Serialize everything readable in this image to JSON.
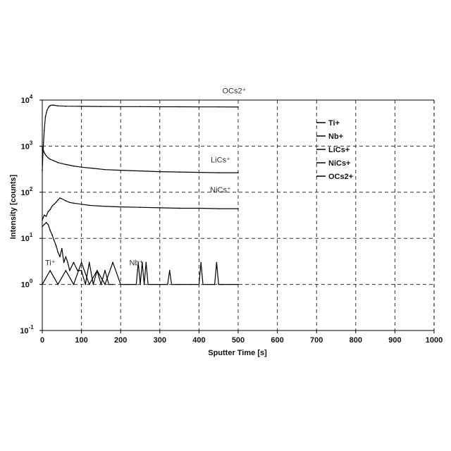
{
  "chart_data": {
    "type": "line",
    "xlabel": "Sputter Time [s]",
    "ylabel": "Intensity [counts]",
    "xlim": [
      0,
      1000
    ],
    "ylim": [
      0.1,
      10000
    ],
    "yscale": "log",
    "grid": true,
    "grid_style": "dashed",
    "legend_position": "right",
    "x_ticks": [
      "0",
      "100",
      "200",
      "300",
      "400",
      "500",
      "600",
      "700",
      "800",
      "900",
      "1000"
    ],
    "y_ticks": [
      {
        "base": "10",
        "exp": "-1"
      },
      {
        "base": "10",
        "exp": "0"
      },
      {
        "base": "10",
        "exp": "1"
      },
      {
        "base": "10",
        "exp": "2"
      },
      {
        "base": "10",
        "exp": "3"
      },
      {
        "base": "10",
        "exp": "4"
      }
    ],
    "legend": [
      "Ti+",
      "Nb+",
      "LiCs+",
      "NiCs+",
      "OCs2+"
    ],
    "annotations": [
      {
        "text": "OCs2⁺",
        "x": 490,
        "y": 14000
      },
      {
        "text": "LiCs⁺",
        "x": 455,
        "y": 440
      },
      {
        "text": "NiCs⁺",
        "x": 455,
        "y": 100
      },
      {
        "text": "Ti⁺",
        "x": 0,
        "y": 2.6
      },
      {
        "text": "Nb⁺",
        "x": 240,
        "y": 2.6
      }
    ],
    "series": [
      {
        "name": "OCs2+",
        "x": [
          0,
          2,
          5,
          8,
          12,
          16,
          20,
          25,
          30,
          40,
          60,
          100,
          150,
          200,
          250,
          300,
          350,
          400,
          450,
          500
        ],
        "y": [
          300,
          800,
          2200,
          4300,
          6000,
          7000,
          7600,
          7800,
          7700,
          7500,
          7350,
          7300,
          7250,
          7200,
          7200,
          7150,
          7150,
          7100,
          7100,
          7050
        ]
      },
      {
        "name": "LiCs+",
        "x": [
          0,
          3,
          6,
          10,
          15,
          20,
          30,
          40,
          60,
          80,
          100,
          130,
          160,
          200,
          250,
          300,
          350,
          400,
          450,
          500
        ],
        "y": [
          950,
          800,
          700,
          620,
          560,
          520,
          480,
          440,
          400,
          370,
          350,
          330,
          310,
          300,
          290,
          280,
          275,
          270,
          265,
          265
        ]
      },
      {
        "name": "NiCs+",
        "x": [
          0,
          5,
          10,
          15,
          20,
          25,
          30,
          35,
          40,
          45,
          50,
          60,
          70,
          80,
          100,
          120,
          150,
          200,
          250,
          300,
          350,
          400,
          450,
          500
        ],
        "y": [
          25,
          32,
          30,
          38,
          42,
          50,
          55,
          60,
          68,
          75,
          72,
          65,
          60,
          58,
          55,
          52,
          50,
          48,
          47,
          46,
          45,
          45,
          44,
          44
        ]
      },
      {
        "name": "Ti+",
        "x": [
          0,
          5,
          10,
          15,
          20,
          25,
          30,
          35,
          40,
          45,
          50,
          55,
          60,
          65,
          70,
          80,
          90,
          100,
          110,
          120,
          130,
          140,
          150,
          160,
          170,
          180
        ],
        "y": [
          18,
          20,
          22,
          20,
          15,
          12,
          9,
          7,
          5,
          4,
          6,
          3,
          4,
          3,
          2,
          3,
          2,
          2,
          1,
          3,
          1,
          2,
          1,
          2,
          1,
          1
        ]
      },
      {
        "name": "Nb+",
        "x": [
          0,
          20,
          40,
          60,
          80,
          100,
          120,
          140,
          160,
          180,
          200,
          220,
          240,
          245,
          250,
          255,
          260,
          265,
          270,
          300,
          320,
          325,
          330,
          350,
          380,
          400,
          405,
          410,
          430,
          440,
          445,
          450,
          460,
          480,
          500
        ],
        "y": [
          1,
          2,
          1,
          2,
          1,
          3,
          1,
          2,
          1,
          3,
          1,
          1,
          1,
          3,
          1,
          3,
          1,
          3,
          1,
          1,
          1,
          2,
          1,
          1,
          1,
          1,
          3,
          1,
          1,
          1,
          3,
          1,
          1,
          1,
          1
        ]
      }
    ]
  }
}
